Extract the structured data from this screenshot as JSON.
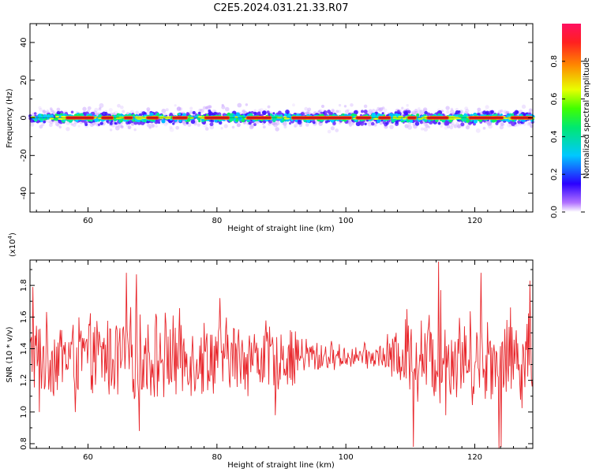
{
  "title": "C2E5.2024.031.21.33.R07",
  "colorbar": {
    "label": "Normalized spectral amplitude",
    "ticks": [
      "0.0",
      "0.2",
      "0.4",
      "0.6",
      "0.8"
    ],
    "tick_values": [
      0.0,
      0.2,
      0.4,
      0.6,
      0.8
    ],
    "range": [
      0,
      1
    ]
  },
  "chart_data": [
    {
      "type": "heatmap",
      "xlabel": "Height of straight line (km)",
      "ylabel": "Frequency (Hz)",
      "xlim": [
        51,
        129
      ],
      "ylim": [
        -50,
        50
      ],
      "x_ticks": [
        "60",
        "80",
        "100",
        "120"
      ],
      "x_tick_values": [
        60,
        80,
        100,
        120
      ],
      "y_ticks": [
        "40",
        "20",
        "0",
        "-20",
        "-40"
      ],
      "y_tick_values": [
        40,
        20,
        0,
        -20,
        -40
      ],
      "band_center_hz": 0,
      "band_halfwidth_hz": 5,
      "high_amplitude_segments_km": [
        [
          56.5,
          61
        ],
        [
          62,
          64
        ],
        [
          65.5,
          67
        ],
        [
          69,
          71
        ],
        [
          73,
          75.5
        ],
        [
          78,
          82
        ],
        [
          84.5,
          88.5
        ],
        [
          91.5,
          101
        ],
        [
          101.5,
          104
        ],
        [
          105,
          107
        ],
        [
          109.5,
          111
        ],
        [
          112.5,
          116
        ],
        [
          119,
          124.5
        ],
        [
          125.5,
          129
        ]
      ]
    },
    {
      "type": "line",
      "xlabel": "Height of straight line (km)",
      "ylabel": "SNR (10 * v/v)",
      "y_multiplier_label": "(x10",
      "y_multiplier_exp": "4",
      "y_multiplier_close": ")",
      "xlim": [
        51,
        129
      ],
      "ylim": [
        0.77,
        1.96
      ],
      "x_ticks": [
        "60",
        "80",
        "100",
        "120"
      ],
      "x_tick_values": [
        60,
        80,
        100,
        120
      ],
      "y_ticks": [
        "0.8",
        "1.0",
        "1.2",
        "1.4",
        "1.6",
        "1.8"
      ],
      "y_tick_values": [
        0.8,
        1.0,
        1.2,
        1.4,
        1.6,
        1.8
      ],
      "mean": 1.35,
      "series": [
        {
          "color": "#e8262b",
          "samples": 700,
          "envelope_km": [
            51,
            60,
            65,
            70,
            75,
            80,
            85,
            90,
            95,
            100,
            105,
            110,
            115,
            120,
            125,
            129
          ],
          "envelope_amp": [
            0.3,
            0.28,
            0.32,
            0.34,
            0.3,
            0.28,
            0.27,
            0.25,
            0.14,
            0.08,
            0.1,
            0.3,
            0.36,
            0.32,
            0.36,
            0.33
          ],
          "extrema_km": [
            51.5,
            52.5,
            58,
            66,
            67.5,
            68,
            80.5,
            89,
            109.5,
            110.5,
            114.4,
            114.7,
            115.5,
            121,
            123.8,
            124.1,
            128.6
          ],
          "extrema_snr": [
            1.79,
            1.0,
            1.0,
            1.88,
            1.87,
            0.88,
            1.72,
            0.98,
            1.65,
            0.78,
            1.95,
            1.77,
            0.98,
            1.88,
            0.76,
            0.78,
            1.83
          ]
        }
      ]
    }
  ]
}
